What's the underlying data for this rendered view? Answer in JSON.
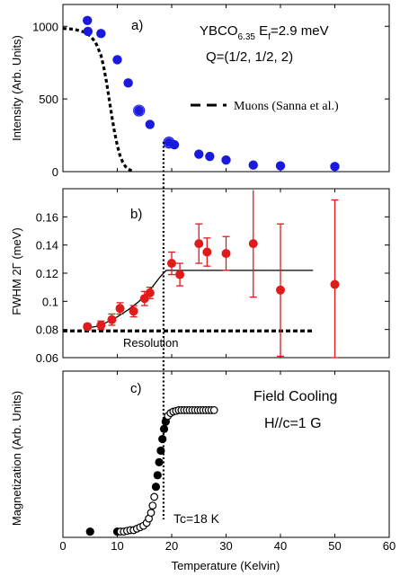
{
  "chart_data": [
    {
      "type": "scatter",
      "panel_label": "a)",
      "ylabel": "Intensity (Arb. Units)",
      "xlim": [
        0,
        60
      ],
      "ylim": [
        0,
        1150
      ],
      "yticks": [
        0,
        500,
        1000
      ],
      "annotations": {
        "line1_main": "YBCO",
        "line1_sub": "6.35",
        "line1_rest": " E",
        "line1_sub2": "f",
        "line1_end": "=2.9 meV",
        "line2": "Q=(1/2, 1/2, 2)"
      },
      "series": [
        {
          "name": "",
          "color": "#1a1adf",
          "x": [
            4.5,
            4.6,
            7,
            10,
            12,
            14,
            16,
            19.5,
            20.5,
            25,
            27,
            30,
            35,
            40,
            50
          ],
          "y": [
            1040,
            965,
            950,
            770,
            610,
            420,
            325,
            200,
            185,
            120,
            105,
            80,
            45,
            40,
            35
          ],
          "err": [
            0,
            0,
            0,
            0,
            0,
            22,
            0,
            20,
            0,
            0,
            0,
            0,
            0,
            0,
            0
          ]
        },
        {
          "name": "Muons (Sanna et al.)",
          "style": "dashed",
          "x": [
            0,
            2,
            4,
            5,
            6,
            7,
            7.5,
            8,
            8.5,
            9,
            9.5,
            10,
            10.5,
            11,
            11.5,
            12,
            12.5,
            13
          ],
          "y": [
            985,
            980,
            960,
            935,
            890,
            800,
            720,
            620,
            500,
            380,
            270,
            180,
            110,
            65,
            35,
            18,
            8,
            3
          ]
        }
      ]
    },
    {
      "type": "scatter",
      "panel_label": "b)",
      "ylabel": "FWHM 2Γ (meV)",
      "xlim": [
        0,
        60
      ],
      "ylim": [
        0.06,
        0.18
      ],
      "yticks": [
        0.06,
        0.08,
        0.1,
        0.12,
        0.14,
        0.16
      ],
      "ytick_labels": [
        "0.06",
        "0.08",
        "0.1",
        "0.12",
        "0.14",
        "0.16"
      ],
      "resolution_label": "Resolution",
      "resolution_value": 0.079,
      "resolution_x": [
        0,
        46
      ],
      "series": [
        {
          "name": "",
          "color": "#e01b1b",
          "x": [
            4.5,
            7,
            9,
            10.5,
            13,
            15,
            16,
            20,
            21.5,
            25,
            26.5,
            30,
            35,
            40,
            50
          ],
          "y": [
            0.082,
            0.083,
            0.087,
            0.095,
            0.093,
            0.102,
            0.106,
            0.127,
            0.119,
            0.141,
            0.135,
            0.134,
            0.141,
            0.108,
            0.112
          ],
          "err": [
            0.002,
            0.003,
            0.004,
            0.004,
            0.004,
            0.005,
            0.004,
            0.008,
            0.008,
            0.014,
            0.01,
            0.012,
            0.038,
            0.047,
            0.06
          ]
        },
        {
          "name": "fit",
          "style": "solid",
          "x": [
            4,
            6,
            8,
            10,
            12,
            14,
            16,
            18,
            19,
            46
          ],
          "y": [
            0.081,
            0.082,
            0.085,
            0.089,
            0.094,
            0.1,
            0.108,
            0.118,
            0.122,
            0.122
          ]
        }
      ]
    },
    {
      "type": "scatter",
      "panel_label": "c)",
      "ylabel": "Magnetization (Arb. Units)",
      "xlabel": "Temperature (Kelvin)",
      "xlim": [
        0,
        60
      ],
      "xticks": [
        0,
        10,
        20,
        30,
        40,
        50,
        60
      ],
      "ylim": [
        0,
        1.15
      ],
      "annotations": {
        "line1": "Field Cooling",
        "line2": "H//c=1 G",
        "tc_label": "Tc=18 K"
      },
      "series": [
        {
          "name": "",
          "x": [
            5,
            10,
            10.6,
            11.2,
            11.8,
            12.4,
            13,
            13.6,
            14.2,
            14.8,
            15.4,
            15.8,
            16.2,
            16.5,
            16.8,
            17.1,
            17.4,
            17.7,
            18,
            18.3,
            18.6,
            18.9,
            19.3,
            19.8,
            20.3,
            20.8,
            21.3,
            21.8,
            22.3,
            22.8,
            23.3,
            23.8,
            24.3,
            24.8,
            25.3,
            25.8,
            26.3,
            26.8,
            27.3,
            27.8
          ],
          "y": [
            0.04,
            0.04,
            0.04,
            0.04,
            0.045,
            0.05,
            0.05,
            0.06,
            0.07,
            0.08,
            0.1,
            0.13,
            0.17,
            0.22,
            0.28,
            0.35,
            0.43,
            0.52,
            0.6,
            0.68,
            0.75,
            0.8,
            0.84,
            0.86,
            0.87,
            0.875,
            0.88,
            0.88,
            0.88,
            0.88,
            0.88,
            0.88,
            0.88,
            0.88,
            0.88,
            0.88,
            0.88,
            0.88,
            0.88,
            0.88
          ],
          "filled": [
            true,
            true,
            false,
            false,
            false,
            false,
            false,
            false,
            false,
            false,
            false,
            false,
            false,
            false,
            false,
            true,
            true,
            true,
            true,
            true,
            true,
            true,
            false,
            false,
            false,
            false,
            false,
            false,
            false,
            false,
            false,
            false,
            false,
            false,
            false,
            false,
            false,
            false,
            false,
            false
          ]
        }
      ]
    }
  ],
  "shared": {
    "tc_line_x": 18.5
  }
}
